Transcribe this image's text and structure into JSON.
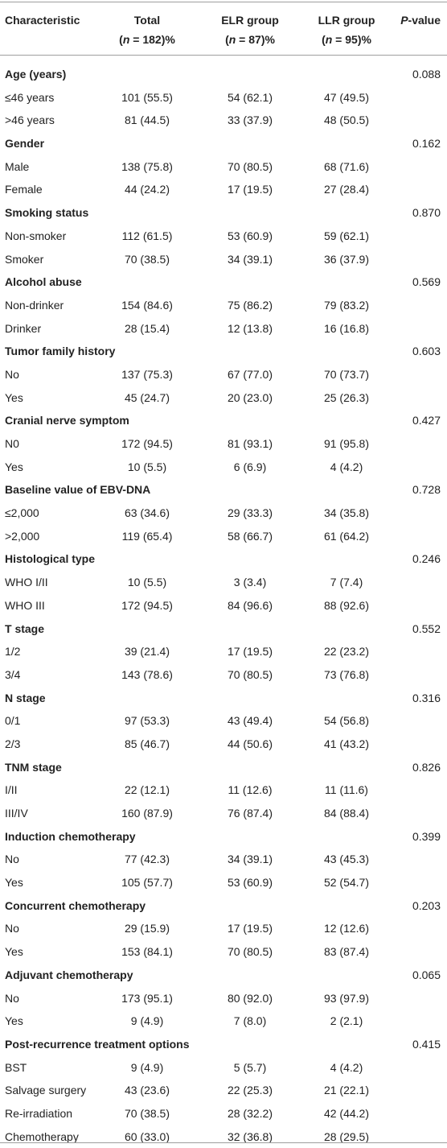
{
  "table": {
    "header": {
      "characteristic": "Characteristic",
      "total_line1": "Total",
      "total_n": "n",
      "total_rest": " = 182)%",
      "elr_line1": "ELR group",
      "elr_n": "n",
      "elr_rest": " = 87)%",
      "llr_line1": "LLR group",
      "llr_n": "n",
      "llr_rest": " = 95)%",
      "p_italic": "P",
      "p_rest": "-value"
    },
    "rows": [
      {
        "type": "group",
        "label": "Age (years)",
        "p": "0.088"
      },
      {
        "type": "item",
        "label": "≤46 years",
        "total": "101 (55.5)",
        "elr": "54 (62.1)",
        "llr": "47 (49.5)"
      },
      {
        "type": "item",
        "label": ">46 years",
        "total": "81 (44.5)",
        "elr": "33 (37.9)",
        "llr": "48 (50.5)"
      },
      {
        "type": "group",
        "label": "Gender",
        "p": "0.162"
      },
      {
        "type": "item",
        "label": "Male",
        "total": "138 (75.8)",
        "elr": "70 (80.5)",
        "llr": "68 (71.6)"
      },
      {
        "type": "item",
        "label": "Female",
        "total": "44 (24.2)",
        "elr": "17 (19.5)",
        "llr": "27 (28.4)"
      },
      {
        "type": "group",
        "label": "Smoking status",
        "p": "0.870"
      },
      {
        "type": "item",
        "label": "Non-smoker",
        "total": "112 (61.5)",
        "elr": "53 (60.9)",
        "llr": "59 (62.1)"
      },
      {
        "type": "item",
        "label": "Smoker",
        "total": "70 (38.5)",
        "elr": "34 (39.1)",
        "llr": "36 (37.9)"
      },
      {
        "type": "group",
        "label": "Alcohol abuse",
        "p": "0.569"
      },
      {
        "type": "item",
        "label": "Non-drinker",
        "total": "154 (84.6)",
        "elr": "75 (86.2)",
        "llr": "79 (83.2)"
      },
      {
        "type": "item",
        "label": "Drinker",
        "total": "28 (15.4)",
        "elr": "12 (13.8)",
        "llr": "16 (16.8)"
      },
      {
        "type": "group",
        "label": "Tumor family history",
        "p": "0.603"
      },
      {
        "type": "item",
        "label": "No",
        "total": "137 (75.3)",
        "elr": "67 (77.0)",
        "llr": "70 (73.7)"
      },
      {
        "type": "item",
        "label": "Yes",
        "total": "45 (24.7)",
        "elr": "20 (23.0)",
        "llr": "25 (26.3)"
      },
      {
        "type": "group",
        "label": "Cranial nerve symptom",
        "p": "0.427"
      },
      {
        "type": "item",
        "label": "N0",
        "total": "172 (94.5)",
        "elr": "81 (93.1)",
        "llr": "91 (95.8)"
      },
      {
        "type": "item",
        "label": "Yes",
        "total": "10 (5.5)",
        "elr": "6 (6.9)",
        "llr": "4 (4.2)"
      },
      {
        "type": "group",
        "label": "Baseline value of EBV-DNA",
        "p": "0.728"
      },
      {
        "type": "item",
        "label": "≤2,000",
        "total": "63 (34.6)",
        "elr": "29 (33.3)",
        "llr": "34 (35.8)"
      },
      {
        "type": "item",
        "label": ">2,000",
        "total": "119 (65.4)",
        "elr": "58 (66.7)",
        "llr": "61 (64.2)"
      },
      {
        "type": "group",
        "label": "Histological type",
        "p": "0.246"
      },
      {
        "type": "item",
        "label": "WHO I/II",
        "total": "10 (5.5)",
        "elr": "3 (3.4)",
        "llr": "7 (7.4)"
      },
      {
        "type": "item",
        "label": "WHO III",
        "total": "172 (94.5)",
        "elr": "84 (96.6)",
        "llr": "88 (92.6)"
      },
      {
        "type": "group",
        "label": "T stage",
        "p": "0.552"
      },
      {
        "type": "item",
        "label": "1/2",
        "total": "39 (21.4)",
        "elr": "17 (19.5)",
        "llr": "22 (23.2)"
      },
      {
        "type": "item",
        "label": "3/4",
        "total": "143 (78.6)",
        "elr": "70 (80.5)",
        "llr": "73 (76.8)"
      },
      {
        "type": "group",
        "label": "N stage",
        "p": "0.316"
      },
      {
        "type": "item",
        "label": "0/1",
        "total": "97 (53.3)",
        "elr": "43 (49.4)",
        "llr": "54 (56.8)"
      },
      {
        "type": "item",
        "label": "2/3",
        "total": "85 (46.7)",
        "elr": "44 (50.6)",
        "llr": "41 (43.2)"
      },
      {
        "type": "group",
        "label": "TNM stage",
        "p": "0.826"
      },
      {
        "type": "item",
        "label": "I/II",
        "total": "22 (12.1)",
        "elr": "11 (12.6)",
        "llr": "11 (11.6)"
      },
      {
        "type": "item",
        "label": "III/IV",
        "total": "160 (87.9)",
        "elr": "76 (87.4)",
        "llr": "84 (88.4)"
      },
      {
        "type": "group",
        "label": "Induction chemotherapy",
        "p": "0.399"
      },
      {
        "type": "item",
        "label": "No",
        "total": "77 (42.3)",
        "elr": "34 (39.1)",
        "llr": "43 (45.3)"
      },
      {
        "type": "item",
        "label": "Yes",
        "total": "105 (57.7)",
        "elr": "53 (60.9)",
        "llr": "52 (54.7)"
      },
      {
        "type": "group",
        "label": "Concurrent chemotherapy",
        "p": "0.203"
      },
      {
        "type": "item",
        "label": "No",
        "total": "29 (15.9)",
        "elr": "17 (19.5)",
        "llr": "12 (12.6)"
      },
      {
        "type": "item",
        "label": "Yes",
        "total": "153 (84.1)",
        "elr": "70 (80.5)",
        "llr": "83 (87.4)"
      },
      {
        "type": "group",
        "label": "Adjuvant chemotherapy",
        "p": "0.065"
      },
      {
        "type": "item",
        "label": "No",
        "total": "173 (95.1)",
        "elr": "80 (92.0)",
        "llr": "93 (97.9)"
      },
      {
        "type": "item",
        "label": "Yes",
        "total": "9 (4.9)",
        "elr": "7 (8.0)",
        "llr": "2 (2.1)"
      },
      {
        "type": "group",
        "label": "Post-recurrence treatment options",
        "p": "0.415"
      },
      {
        "type": "item",
        "label": "BST",
        "total": "9 (4.9)",
        "elr": "5 (5.7)",
        "llr": "4 (4.2)"
      },
      {
        "type": "item",
        "label": "Salvage surgery",
        "total": "43 (23.6)",
        "elr": "22 (25.3)",
        "llr": "21 (22.1)"
      },
      {
        "type": "item",
        "label": "Re-irradiation",
        "total": "70 (38.5)",
        "elr": "28 (32.2)",
        "llr": "42 (44.2)"
      },
      {
        "type": "item",
        "label": "Chemotherapy",
        "total": "60 (33.0)",
        "elr": "32 (36.8)",
        "llr": "28 (29.5)"
      }
    ]
  }
}
